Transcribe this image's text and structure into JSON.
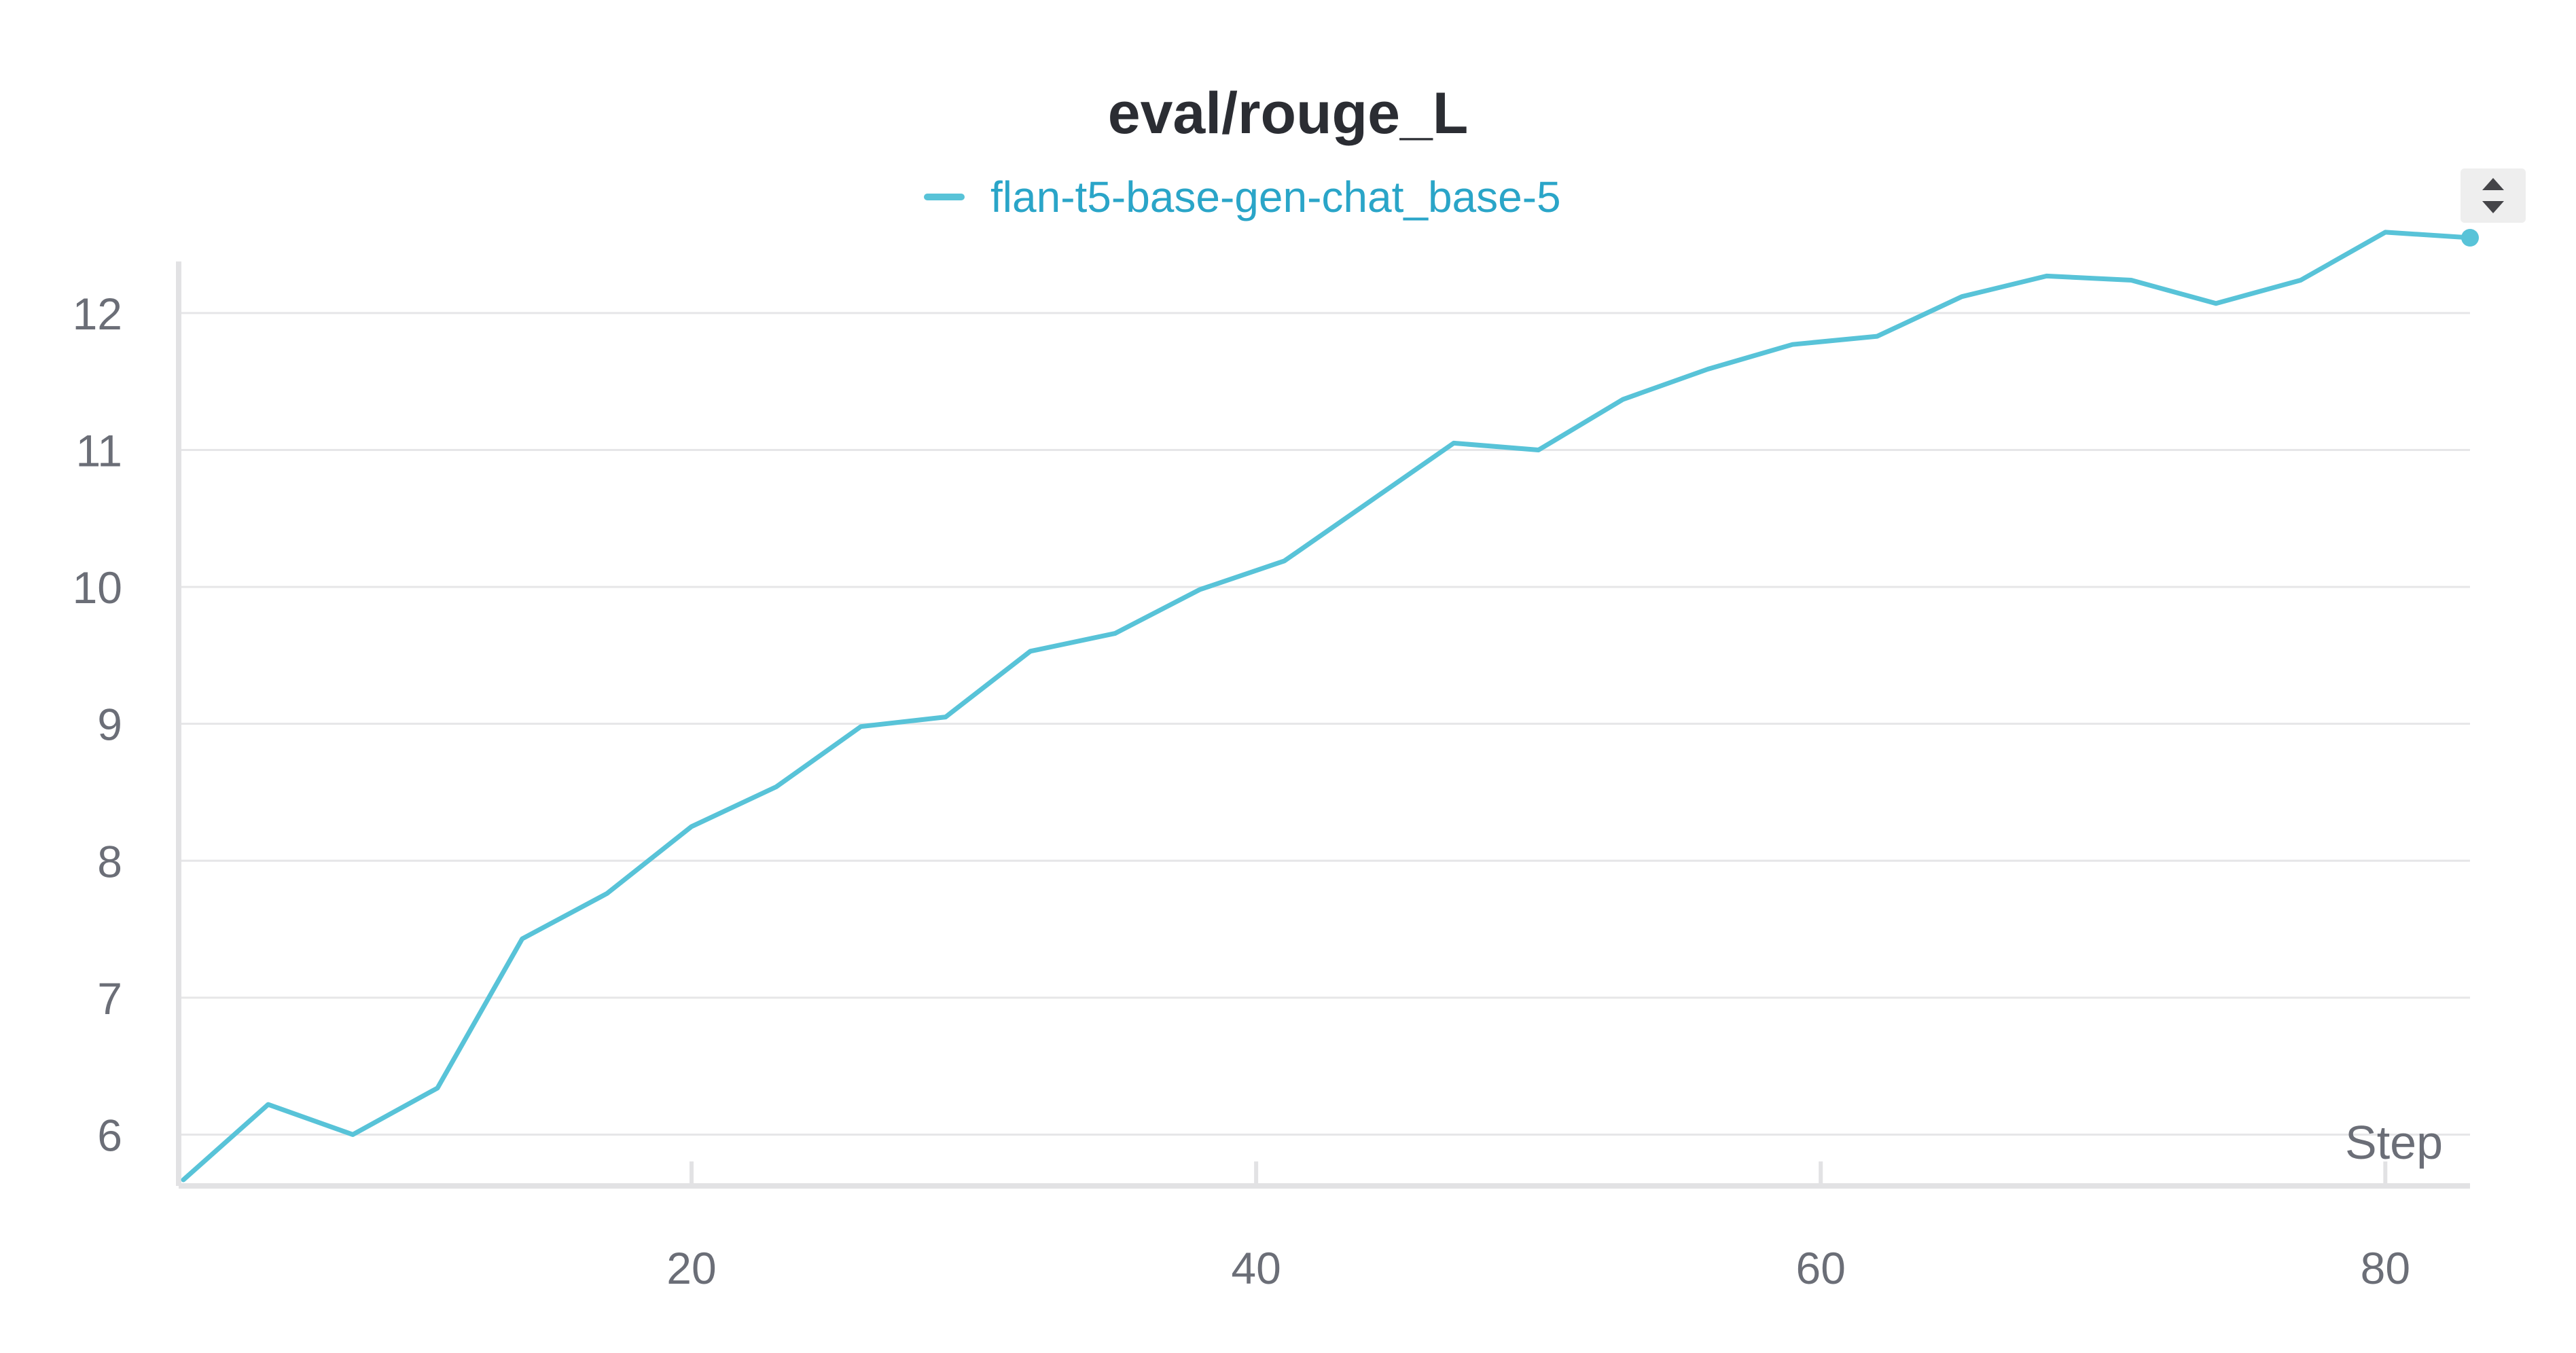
{
  "chart_data": {
    "type": "line",
    "title": "eval/rouge_L",
    "xlabel": "Step",
    "ylabel": "",
    "xlim": [
      2,
      83
    ],
    "ylim": [
      5.65,
      12.55
    ],
    "x_ticks": [
      20,
      40,
      60,
      80
    ],
    "y_ticks": [
      6,
      7,
      8,
      9,
      10,
      11,
      12
    ],
    "grid": true,
    "legend_position": "top-center",
    "series": [
      {
        "name": "flan-t5-base-gen-chat_base-5",
        "color": "#58c3d8",
        "x": [
          2,
          5,
          8,
          11,
          14,
          17,
          20,
          23,
          26,
          29,
          32,
          35,
          38,
          41,
          44,
          47,
          50,
          53,
          56,
          59,
          62,
          65,
          68,
          71,
          74,
          77,
          80,
          83
        ],
        "y": [
          5.67,
          6.22,
          6.0,
          6.34,
          7.43,
          7.76,
          8.25,
          8.54,
          8.98,
          9.05,
          9.53,
          9.66,
          9.98,
          10.19,
          10.62,
          11.05,
          11.0,
          11.37,
          11.59,
          11.77,
          11.83,
          12.12,
          12.27,
          12.24,
          12.07,
          12.24,
          12.59,
          12.55
        ]
      }
    ]
  },
  "ui": {
    "scroll_up_icon": "triangle-up",
    "scroll_down_icon": "triangle-down"
  }
}
